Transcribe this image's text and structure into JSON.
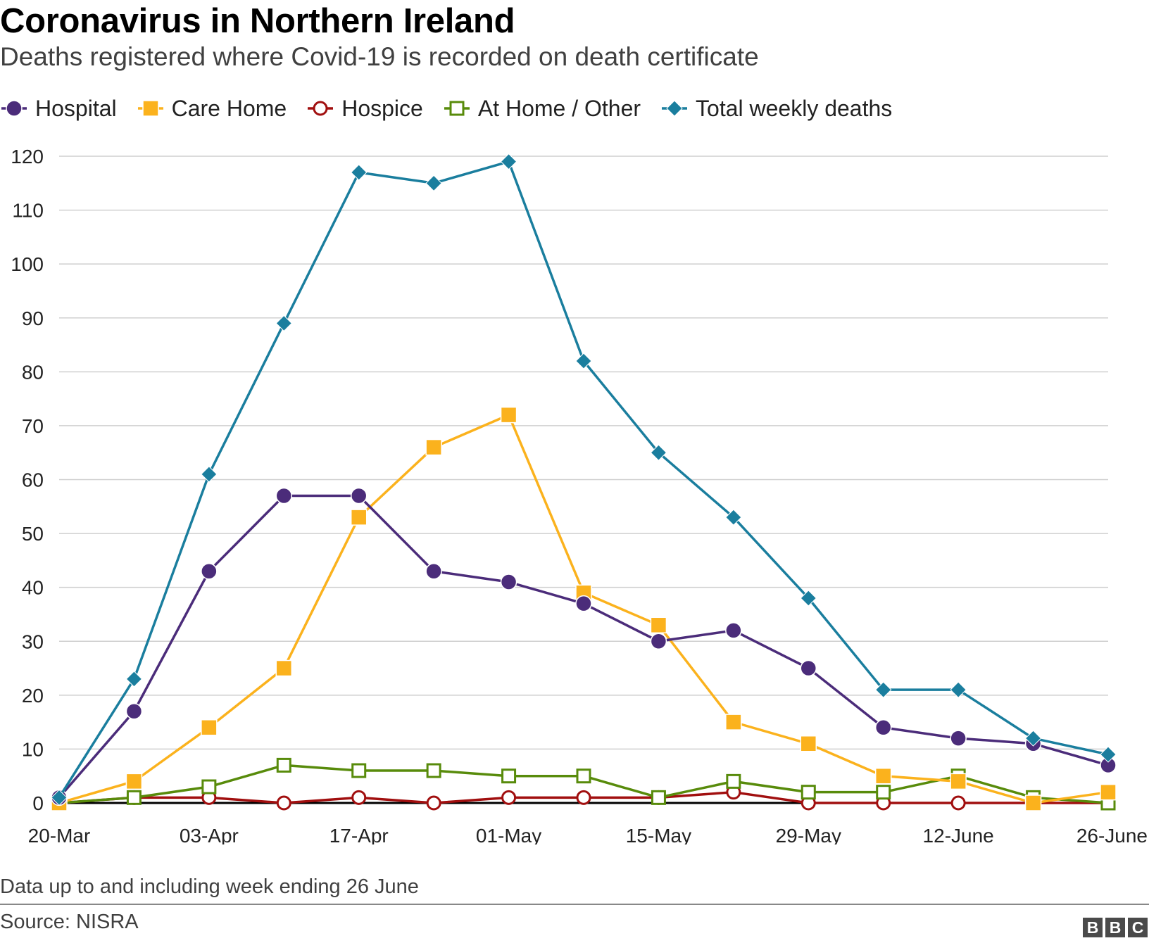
{
  "header": {
    "title": "Coronavirus in Northern Ireland",
    "subtitle": "Deaths registered where Covid-19 is recorded on death certificate"
  },
  "footer": {
    "note": "Data up to and including week ending 26 June",
    "source": "Source: NISRA",
    "logo_letters": [
      "B",
      "B",
      "C"
    ]
  },
  "chart_data": {
    "type": "line",
    "title": "Coronavirus in Northern Ireland",
    "subtitle": "Deaths registered where Covid-19 is recorded on death certificate",
    "xlabel": "",
    "ylabel": "",
    "ylim": [
      0,
      120
    ],
    "yticks": [
      0,
      10,
      20,
      30,
      40,
      50,
      60,
      70,
      80,
      90,
      100,
      110,
      120
    ],
    "grid": true,
    "legend_position": "top-left",
    "categories": [
      "20-Mar",
      "27-Mar",
      "03-Apr",
      "10-Apr",
      "17-Apr",
      "24-Apr",
      "01-May",
      "08-May",
      "15-May",
      "22-May",
      "29-May",
      "05-June",
      "12-June",
      "19-June",
      "26-June"
    ],
    "tick_labels": [
      "20-Mar",
      "03-Apr",
      "17-Apr",
      "01-May",
      "15-May",
      "29-May",
      "12-June",
      "26-June"
    ],
    "tick_indices": [
      0,
      2,
      4,
      6,
      8,
      10,
      12,
      14
    ],
    "series": [
      {
        "name": "Hospital",
        "color": "#4b2c7a",
        "marker": "circle-filled",
        "values": [
          1,
          17,
          43,
          57,
          57,
          43,
          41,
          37,
          30,
          32,
          25,
          14,
          12,
          11,
          7
        ]
      },
      {
        "name": "Care Home",
        "color": "#fbb21d",
        "marker": "square-filled",
        "values": [
          0,
          4,
          14,
          25,
          53,
          66,
          72,
          39,
          33,
          15,
          11,
          5,
          4,
          0,
          2
        ]
      },
      {
        "name": "Hospice",
        "color": "#a10f0f",
        "marker": "circle-open",
        "values": [
          0,
          1,
          1,
          0,
          1,
          0,
          1,
          1,
          1,
          2,
          0,
          0,
          0,
          0,
          0
        ]
      },
      {
        "name": "At Home / Other",
        "color": "#588b0b",
        "marker": "square-open",
        "values": [
          0,
          1,
          3,
          7,
          6,
          6,
          5,
          5,
          1,
          4,
          2,
          2,
          5,
          1,
          0
        ]
      },
      {
        "name": "Total weekly deaths",
        "color": "#1a7e9e",
        "marker": "diamond-filled",
        "values": [
          1,
          23,
          61,
          89,
          117,
          115,
          119,
          82,
          65,
          53,
          38,
          21,
          21,
          12,
          9
        ]
      }
    ]
  }
}
